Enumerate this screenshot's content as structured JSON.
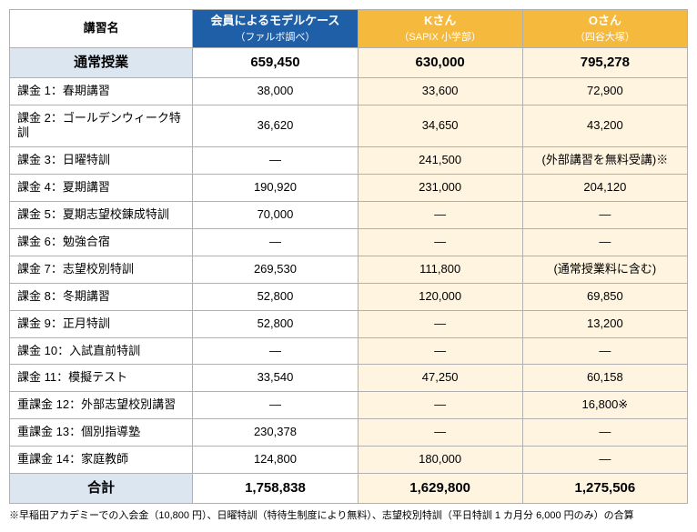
{
  "header": {
    "rowlabel": "講習名",
    "cols": [
      {
        "title": "会員によるモデルケース",
        "sub": "（ファルボ調べ）",
        "bg": "#1f5fa8"
      },
      {
        "title": "Kさん",
        "sub": "（SAPIX 小学部）",
        "bg": "#f5b93d"
      },
      {
        "title": "Oさん",
        "sub": "（四谷大塚）",
        "bg": "#f5b93d"
      }
    ]
  },
  "regular": {
    "label": "通常授業",
    "values": [
      "659,450",
      "630,000",
      "795,278"
    ]
  },
  "rows": [
    {
      "label": "課金 1：春期講習",
      "values": [
        "38,000",
        "33,600",
        "72,900"
      ]
    },
    {
      "label": "課金 2：ゴールデンウィーク特訓",
      "values": [
        "36,620",
        "34,650",
        "43,200"
      ]
    },
    {
      "label": "課金 3：日曜特訓",
      "values": [
        "―",
        "241,500",
        "(外部講習を無料受講)※"
      ]
    },
    {
      "label": "課金 4：夏期講習",
      "values": [
        "190,920",
        "231,000",
        "204,120"
      ]
    },
    {
      "label": "課金 5：夏期志望校錬成特訓",
      "values": [
        "70,000",
        "―",
        "―"
      ]
    },
    {
      "label": "課金 6：勉強合宿",
      "values": [
        "―",
        "―",
        "―"
      ]
    },
    {
      "label": "課金 7：志望校別特訓",
      "values": [
        "269,530",
        "111,800",
        "(通常授業料に含む)"
      ]
    },
    {
      "label": "課金 8：冬期講習",
      "values": [
        "52,800",
        "120,000",
        "69,850"
      ]
    },
    {
      "label": "課金 9：正月特訓",
      "values": [
        "52,800",
        "―",
        "13,200"
      ]
    },
    {
      "label": "課金 10：入試直前特訓",
      "values": [
        "―",
        "―",
        "―"
      ]
    },
    {
      "label": "課金 11：模擬テスト",
      "values": [
        "33,540",
        "47,250",
        "60,158"
      ]
    },
    {
      "label": "重課金 12：外部志望校別講習",
      "values": [
        "―",
        "―",
        "16,800※"
      ]
    },
    {
      "label": "重課金 13：個別指導塾",
      "values": [
        "230,378",
        "―",
        "―"
      ]
    },
    {
      "label": "重課金 14：家庭教師",
      "values": [
        "124,800",
        "180,000",
        "―"
      ]
    }
  ],
  "total": {
    "label": "合計",
    "values": [
      "1,758,838",
      "1,629,800",
      "1,275,506"
    ]
  },
  "col_bgs": [
    "#ffffff",
    "#fff4e0",
    "#fff4e0"
  ],
  "footnote": "※早稲田アカデミーでの入会金（10,800 円）、日曜特訓（特待生制度により無料）、志望校別特訓（平日特訓 1 カ月分 6,000 円のみ）の合算"
}
